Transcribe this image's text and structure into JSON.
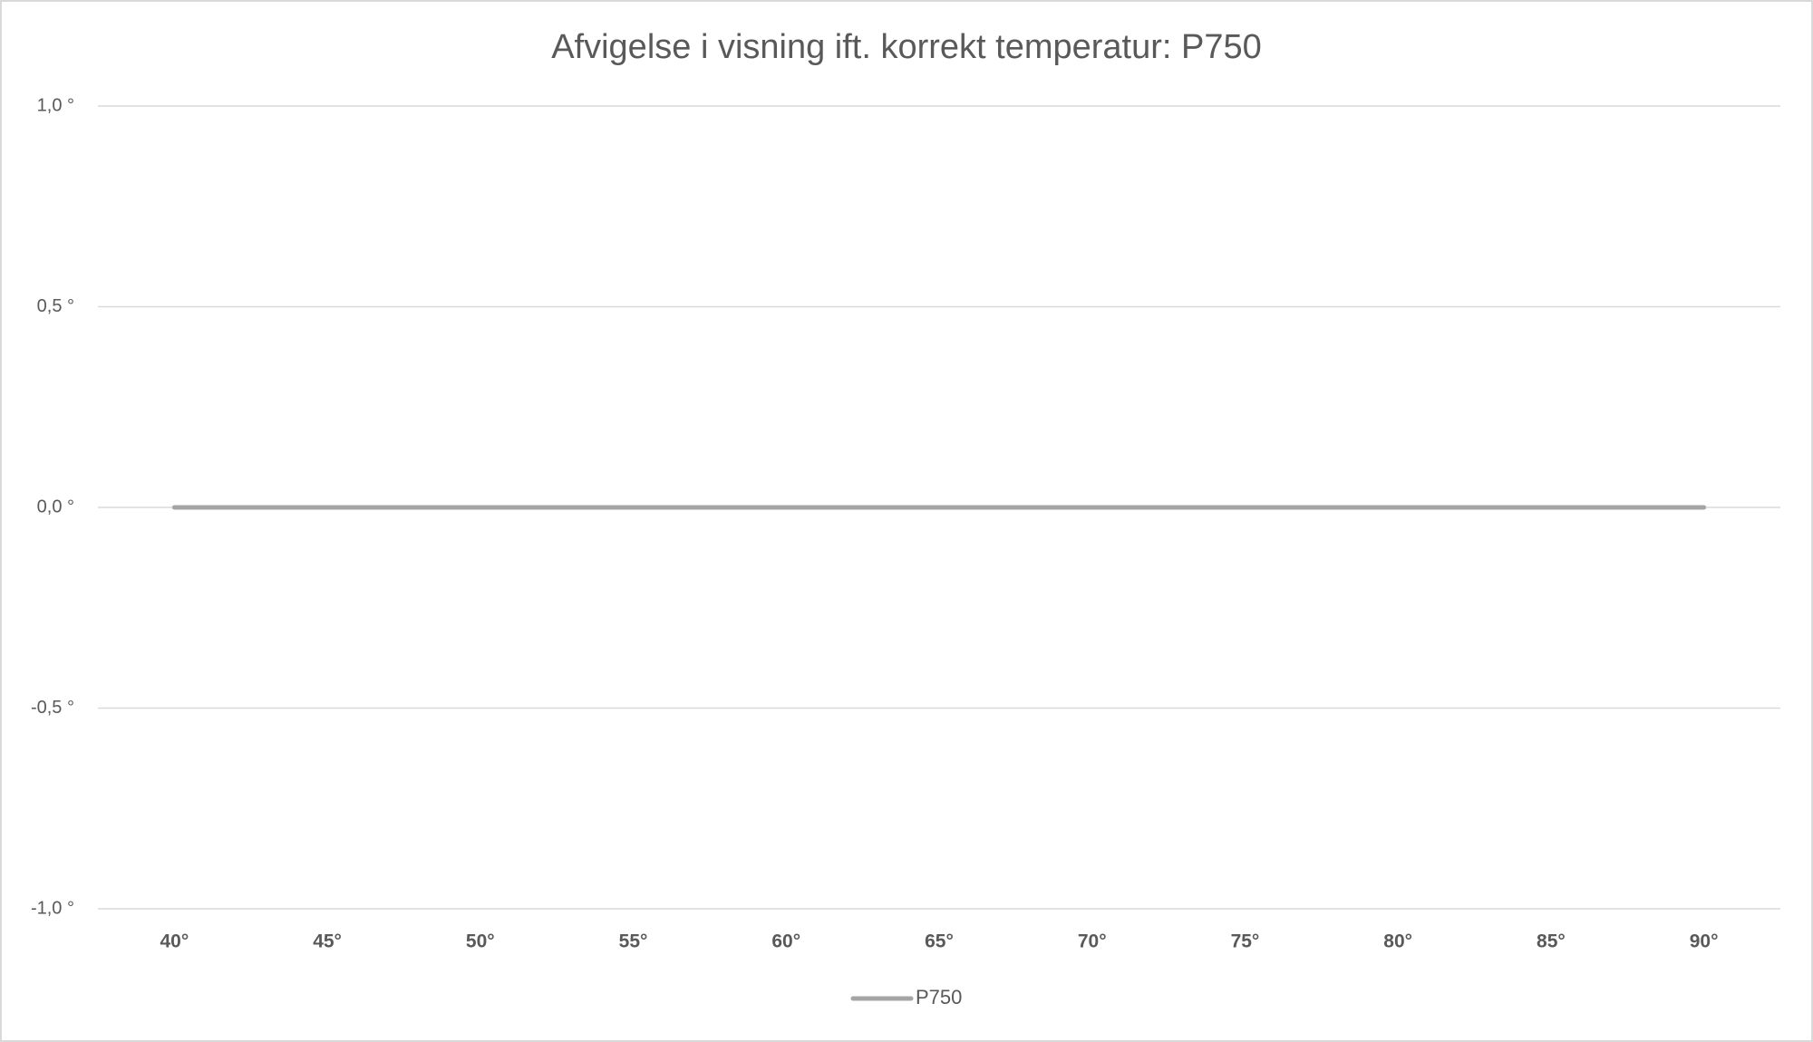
{
  "chart_data": {
    "type": "line",
    "title": "Afvigelse i visning ift. korrekt temperatur: P750",
    "categories": [
      "40°",
      "45°",
      "50°",
      "55°",
      "60°",
      "65°",
      "70°",
      "75°",
      "80°",
      "85°",
      "90°"
    ],
    "series": [
      {
        "name": "P750",
        "color": "#a5a5a5",
        "values": [
          0,
          0,
          0,
          0,
          0,
          0,
          0,
          0,
          0,
          0,
          0
        ]
      }
    ],
    "ylim": [
      -1,
      1
    ],
    "yticks": [
      {
        "value": -1,
        "label": "-1,0 °"
      },
      {
        "value": -0.5,
        "label": "-0,5 °"
      },
      {
        "value": 0,
        "label": "0,0 °"
      },
      {
        "value": 0.5,
        "label": "0,5 °"
      },
      {
        "value": 1,
        "label": "1,0 °"
      }
    ],
    "grid": true,
    "legend": "bottom"
  }
}
